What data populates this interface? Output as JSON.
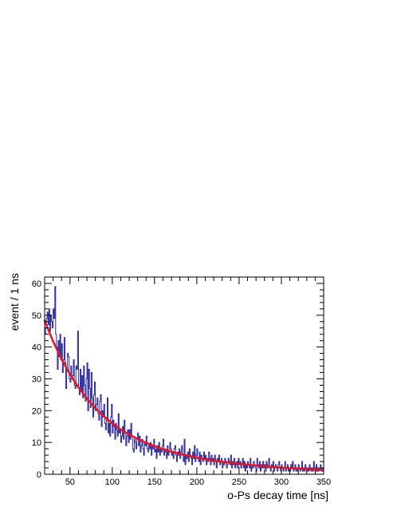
{
  "chart_data": {
    "type": "line",
    "title": "",
    "xlabel": "o-Ps decay time [ns]",
    "ylabel": "event / 1 ns",
    "xlim": [
      20,
      350
    ],
    "ylim": [
      0,
      62
    ],
    "x_ticks": [
      50,
      100,
      150,
      200,
      250,
      300,
      350
    ],
    "y_ticks": [
      0,
      10,
      20,
      30,
      40,
      50,
      60
    ],
    "grid": false,
    "legend": "none",
    "bin_width_ns": 1,
    "colors": {
      "histogram": "#2d2ba0",
      "fit": "#e8131f",
      "frame": "#000000"
    },
    "series": [
      {
        "style": "histogram",
        "x_start": 20,
        "values": [
          44,
          46,
          49,
          51,
          47,
          52,
          45,
          50,
          48,
          46,
          52,
          49,
          59,
          44,
          40,
          33,
          42,
          37,
          44,
          36,
          41,
          32,
          36,
          43,
          35,
          27,
          33,
          38,
          37,
          30,
          29,
          34,
          30,
          31,
          36,
          28,
          27,
          34,
          33,
          45,
          27,
          25,
          33,
          26,
          31,
          24,
          34,
          28,
          23,
          30,
          35,
          20,
          33,
          27,
          21,
          32,
          24,
          18,
          25,
          29,
          20,
          22,
          24,
          19,
          17,
          23,
          25,
          15,
          20,
          18,
          22,
          16,
          14,
          17,
          24,
          13,
          16,
          12,
          18,
          22,
          13,
          17,
          15,
          11,
          16,
          14,
          12,
          19,
          13,
          14,
          10,
          12,
          15,
          11,
          17,
          13,
          9,
          12,
          14,
          10,
          14,
          11,
          16,
          12,
          8,
          7,
          11,
          10,
          8,
          11,
          13,
          9,
          12,
          7,
          9,
          11,
          8,
          6,
          10,
          9,
          12,
          8,
          7,
          9,
          8,
          10,
          6,
          9,
          8,
          11,
          7,
          8,
          5,
          9,
          7,
          10,
          6,
          8,
          7,
          9,
          11,
          6,
          8,
          7,
          5,
          9,
          6,
          7,
          10,
          8,
          6,
          7,
          5,
          8,
          9,
          6,
          4,
          7,
          6,
          8,
          5,
          7,
          9,
          6,
          4,
          11,
          3,
          6,
          5,
          7,
          4,
          8,
          6,
          5,
          3,
          7,
          5,
          9,
          4,
          6,
          8,
          5,
          4,
          7,
          3,
          6,
          5,
          4,
          7,
          5,
          6,
          3,
          5,
          4,
          7,
          5,
          3,
          6,
          4,
          5,
          3,
          6,
          4,
          2,
          5,
          4,
          6,
          3,
          4,
          5,
          2,
          4,
          3,
          5,
          4,
          2,
          3,
          5,
          4,
          3,
          6,
          2,
          4,
          3,
          5,
          2,
          3,
          4,
          2,
          5,
          3,
          4,
          2,
          3,
          5,
          2,
          4,
          1,
          3,
          2,
          4,
          3,
          2,
          5,
          1,
          3,
          2,
          4,
          3,
          2,
          1,
          5,
          3,
          2,
          4,
          1,
          3,
          2,
          4,
          2,
          3,
          1,
          4,
          2,
          3,
          5,
          2,
          1,
          3,
          2,
          4,
          1,
          2,
          3,
          2,
          1,
          3,
          4,
          2,
          1,
          3,
          2,
          1,
          2,
          4,
          1,
          2,
          3,
          1,
          2,
          1,
          3,
          2,
          4,
          1,
          2,
          3,
          1,
          2,
          1,
          3,
          2,
          1,
          2,
          4,
          1,
          2,
          1,
          3,
          2,
          1,
          2,
          1,
          3,
          2,
          1,
          2,
          1,
          4,
          2,
          1,
          3,
          1,
          2,
          1,
          2,
          3,
          1,
          2,
          1,
          2,
          1,
          3,
          1,
          2,
          1,
          2,
          1
        ]
      },
      {
        "style": "line",
        "function": "exponential fit",
        "x": [
          20,
          30,
          40,
          50,
          60,
          70,
          80,
          90,
          100,
          110,
          120,
          130,
          140,
          150,
          160,
          170,
          180,
          190,
          200,
          210,
          220,
          230,
          240,
          250,
          260,
          270,
          280,
          290,
          300,
          310,
          320,
          330,
          340,
          348
        ],
        "values": [
          48.3,
          41.8,
          36.2,
          31.4,
          27.3,
          23.8,
          20.8,
          18.2,
          16.0,
          14.1,
          12.5,
          11.1,
          9.9,
          8.8,
          7.9,
          7.1,
          6.4,
          5.8,
          5.2,
          4.7,
          4.3,
          3.9,
          3.6,
          3.3,
          3.0,
          2.7,
          2.5,
          2.3,
          2.1,
          1.9,
          1.8,
          1.6,
          1.5,
          1.4
        ]
      }
    ]
  },
  "axes": {
    "x_tick_labels": [
      "50",
      "100",
      "150",
      "200",
      "250",
      "300",
      "350"
    ],
    "y_tick_labels": [
      "0",
      "10",
      "20",
      "30",
      "40",
      "50",
      "60"
    ]
  }
}
